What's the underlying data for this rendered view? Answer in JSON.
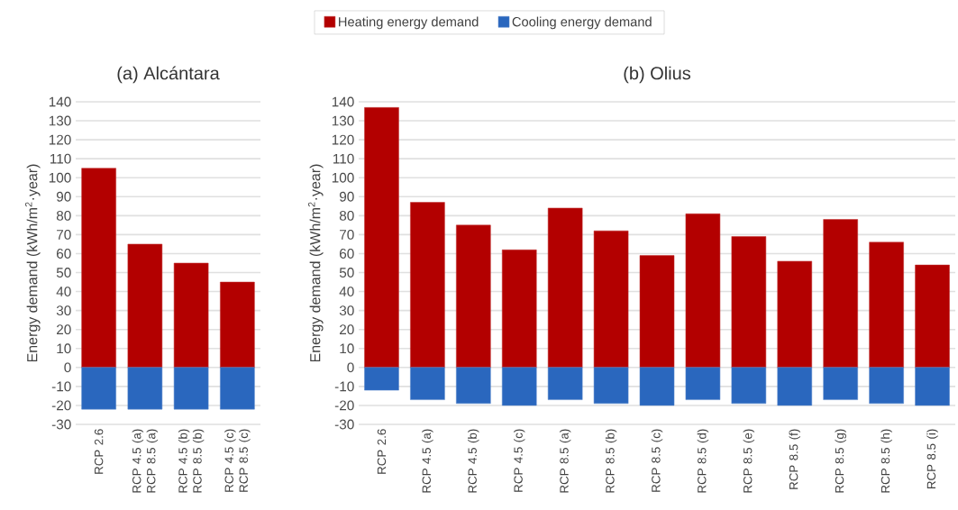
{
  "chart_data": [
    {
      "type": "bar",
      "title": "(a) Alcántara",
      "ylabel": "Energy demand (kWh/m$^{2}$·year)",
      "categories": [
        "RCP 2.6",
        "RCP 4.5 (a) RCP 8.5 (a)",
        "RCP 4.5 (b) RCP 8.5 (b)",
        "RCP 4.5 (c) RCP 8.5 (c)"
      ],
      "series": [
        {
          "name": "Heating energy demand",
          "color": "#b30000",
          "values": [
            105,
            65,
            55,
            45
          ]
        },
        {
          "name": "Cooling energy demand",
          "color": "#2a67be",
          "values": [
            -22,
            -22,
            -22,
            -22
          ]
        }
      ],
      "stacked": true,
      "ylim": [
        -30,
        140
      ],
      "yticks": [
        -30,
        -20,
        -10,
        0,
        10,
        20,
        30,
        40,
        50,
        60,
        70,
        80,
        90,
        100,
        110,
        120,
        130,
        140
      ],
      "grid": "y",
      "legend": "top"
    },
    {
      "type": "bar",
      "title": "(b) Olius",
      "ylabel": "Energy demand (kWh/m$^{2}$·year)",
      "categories": [
        "RCP 2.6",
        "RCP 4.5 (a)",
        "RCP 4.5 (b)",
        "RCP 4.5 (c)",
        "RCP 8.5 (a)",
        "RCP 8.5 (b)",
        "RCP 8.5 (c)",
        "RCP 8.5 (d)",
        "RCP 8.5 (e)",
        "RCP 8.5 (f)",
        "RCP 8.5 (g)",
        "RCP 8.5 (h)",
        "RCP 8.5 (i)"
      ],
      "series": [
        {
          "color": "#b30000",
          "values": [
            137,
            87,
            75,
            62,
            84,
            72,
            59,
            81,
            69,
            56,
            78,
            66,
            54
          ]
        },
        {
          "color": "#2a67be",
          "values": [
            -12,
            -17,
            -19,
            -20,
            -17,
            -19,
            -20,
            -17,
            -19,
            -20,
            -17,
            -19,
            -20
          ]
        }
      ],
      "stacked": true,
      "ylim": [
        -30,
        140
      ],
      "yticks": [
        -30,
        -20,
        -10,
        0,
        10,
        20,
        30,
        40,
        50,
        60,
        70,
        80,
        90,
        100,
        110,
        120,
        130,
        140
      ],
      "grid": "y"
    }
  ]
}
